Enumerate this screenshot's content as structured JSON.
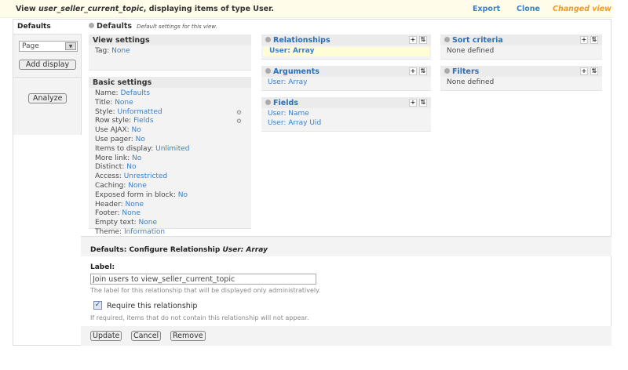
{
  "header": {
    "title_prefix": "View ",
    "view_name": "user_seller_current_topic",
    "title_suffix": ", displaying items of type User.",
    "export": "Export",
    "clone": "Clone",
    "changed": "Changed view"
  },
  "sidebar": {
    "tab": "Defaults",
    "display_select": "Page",
    "add_display": "Add display",
    "analyze": "Analyze"
  },
  "main": {
    "title": "Defaults",
    "description": "Default settings for this view."
  },
  "view_settings": {
    "title": "View settings",
    "items": [
      {
        "k": "Tag: ",
        "v": "None"
      }
    ]
  },
  "basic_settings": {
    "title": "Basic settings",
    "items": [
      {
        "k": "Name: ",
        "v": "Defaults"
      },
      {
        "k": "Title: ",
        "v": "None"
      },
      {
        "k": "Style: ",
        "v": "Unformatted"
      },
      {
        "k": "Row style: ",
        "v": "Fields"
      },
      {
        "k": "Use AJAX: ",
        "v": "No"
      },
      {
        "k": "Use pager: ",
        "v": "No"
      },
      {
        "k": "Items to display: ",
        "v": "Unlimited"
      },
      {
        "k": "More link: ",
        "v": "No"
      },
      {
        "k": "Distinct: ",
        "v": "No"
      },
      {
        "k": "Access: ",
        "v": "Unrestricted"
      },
      {
        "k": "Caching: ",
        "v": "None"
      },
      {
        "k": "Exposed form in block: ",
        "v": "No"
      },
      {
        "k": "Header: ",
        "v": "None"
      },
      {
        "k": "Footer: ",
        "v": "None"
      },
      {
        "k": "Empty text: ",
        "v": "None"
      },
      {
        "k": "Theme: ",
        "v": "Information"
      }
    ]
  },
  "relationships": {
    "title": "Relationships",
    "items": [
      "User: Array"
    ]
  },
  "arguments": {
    "title": "Arguments",
    "items": [
      "User: Array"
    ]
  },
  "fields": {
    "title": "Fields",
    "items": [
      "User: Name",
      "User: Array Uid"
    ]
  },
  "sort": {
    "title": "Sort criteria",
    "empty": "None defined"
  },
  "filters": {
    "title": "Filters",
    "empty": "None defined"
  },
  "config": {
    "title": "Defaults: Configure Relationship ",
    "title_em": "User: Array",
    "label": "Label:",
    "label_value": "Join users to view_seller_current_topic",
    "label_hint": "The label for this relationship that will be displayed only administratively.",
    "require_label": "Require this relationship",
    "require_checked": true,
    "require_hint": "If required, items that do not contain this relationship will not appear.",
    "update": "Update",
    "cancel": "Cancel",
    "remove": "Remove"
  }
}
